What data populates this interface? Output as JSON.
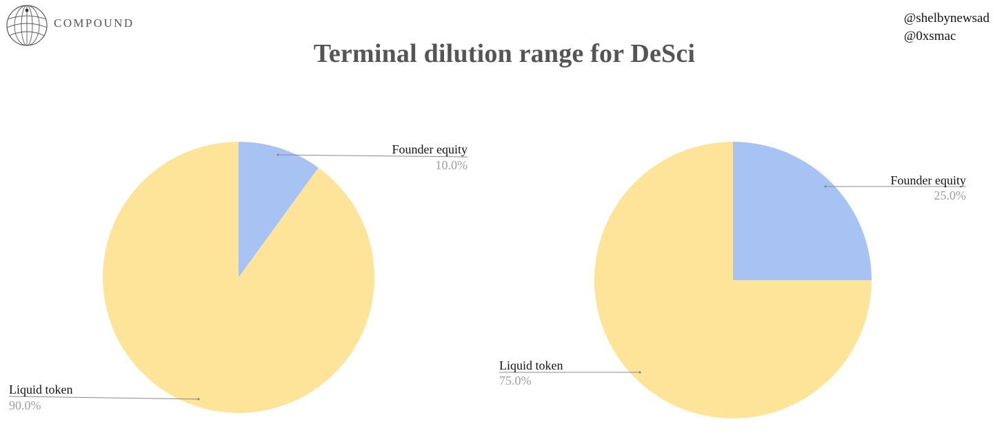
{
  "brand": {
    "name": "COMPOUND",
    "logo_icon": "globe-wireframe-icon"
  },
  "handles": [
    "@shelbynewsad",
    "@0xsmac"
  ],
  "title": "Terminal dilution range for DeSci",
  "colors": {
    "founder": "#a6c3f3",
    "token": "#fde499",
    "leader": "#888888"
  },
  "chart_data": [
    {
      "type": "pie",
      "title": "",
      "categories": [
        "Founder equity",
        "Liquid token"
      ],
      "values": [
        10.0,
        90.0
      ],
      "labels": [
        "10.0%",
        "90.0%"
      ],
      "start": "12 o'clock, clockwise"
    },
    {
      "type": "pie",
      "title": "",
      "categories": [
        "Founder equity",
        "Liquid token"
      ],
      "values": [
        25.0,
        75.0
      ],
      "labels": [
        "25.0%",
        "75.0%"
      ],
      "start": "12 o'clock, clockwise"
    }
  ]
}
